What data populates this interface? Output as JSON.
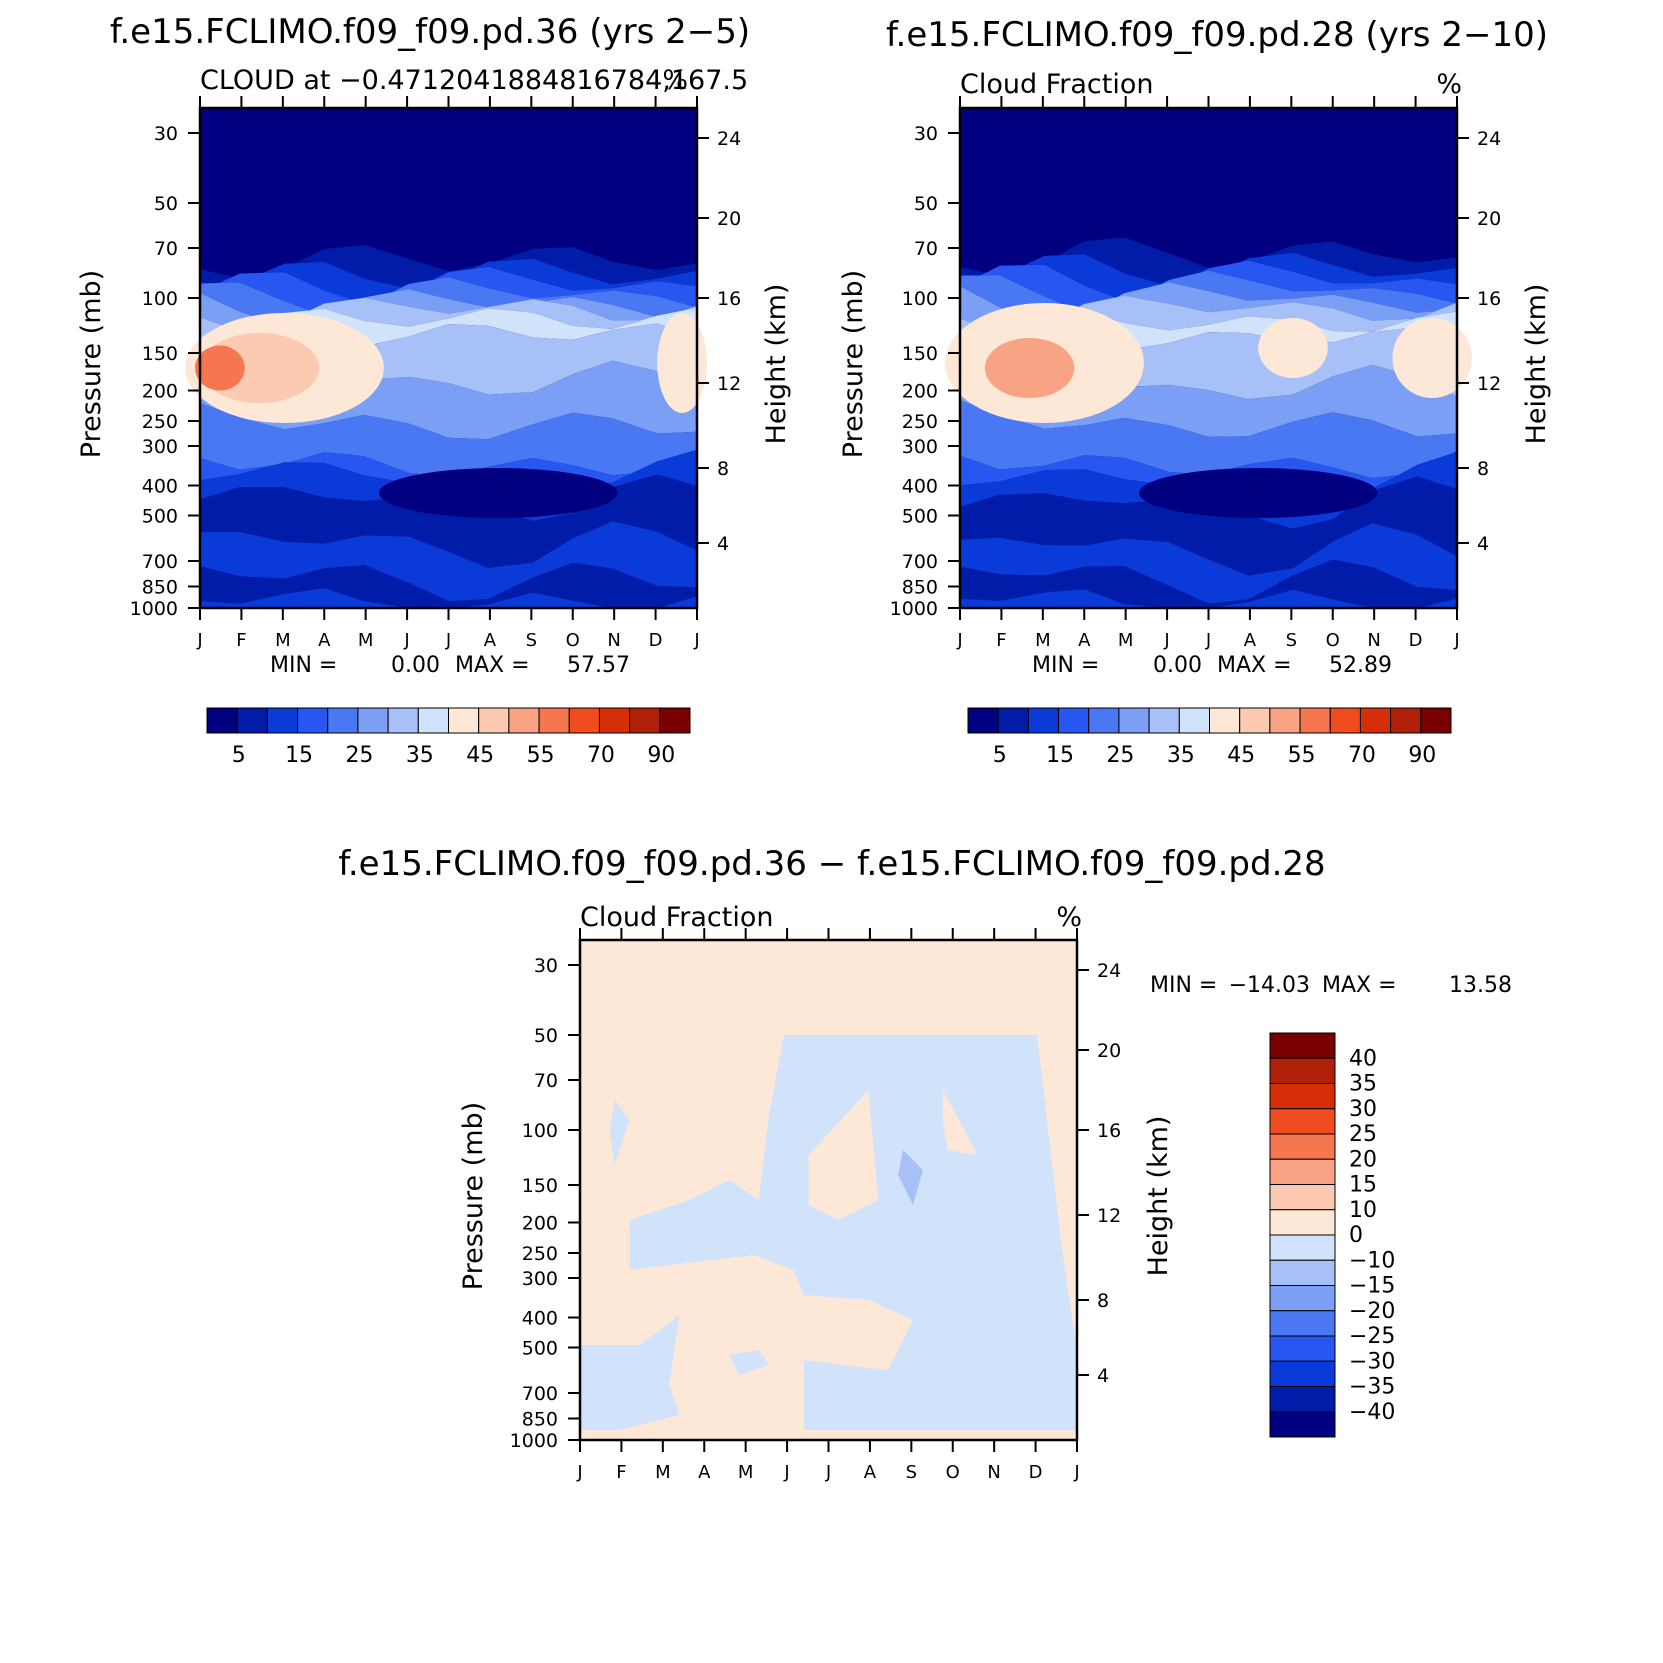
{
  "chart_data": [
    {
      "type": "heatmap",
      "id": "p1",
      "title": "f.e15.FCLIMO.f09_f09.pd.36 (yrs 2−5)",
      "subtitle_left": "CLOUD at −0.4712041884816784,167.5",
      "subtitle_right": "%",
      "ylabel": "Pressure (mb)",
      "ylabel2": "Height (km)",
      "x_ticks": [
        "J",
        "F",
        "M",
        "A",
        "M",
        "J",
        "J",
        "A",
        "S",
        "O",
        "N",
        "D",
        "J"
      ],
      "y_ticks": [
        "30",
        "50",
        "70",
        "100",
        "150",
        "200",
        "250",
        "300",
        "400",
        "500",
        "700",
        "850",
        "1000"
      ],
      "y2_ticks": [
        "24",
        "20",
        "16",
        "12",
        "8",
        "4"
      ],
      "stats": {
        "min_label": "MIN =",
        "min": "0.00",
        "max_label": "MAX =",
        "max": "57.57"
      },
      "colorbar_labels": [
        "5",
        "15",
        "25",
        "35",
        "45",
        "55",
        "70",
        "90"
      ]
    },
    {
      "type": "heatmap",
      "id": "p2",
      "title": "f.e15.FCLIMO.f09_f09.pd.28 (yrs 2−10)",
      "subtitle_left": "Cloud Fraction",
      "subtitle_right": "%",
      "ylabel": "Pressure (mb)",
      "ylabel2": "Height (km)",
      "x_ticks": [
        "J",
        "F",
        "M",
        "A",
        "M",
        "J",
        "J",
        "A",
        "S",
        "O",
        "N",
        "D",
        "J"
      ],
      "y_ticks": [
        "30",
        "50",
        "70",
        "100",
        "150",
        "200",
        "250",
        "300",
        "400",
        "500",
        "700",
        "850",
        "1000"
      ],
      "y2_ticks": [
        "24",
        "20",
        "16",
        "12",
        "8",
        "4"
      ],
      "stats": {
        "min_label": "MIN =",
        "min": "0.00",
        "max_label": "MAX =",
        "max": "52.89"
      },
      "colorbar_labels": [
        "5",
        "15",
        "25",
        "35",
        "45",
        "55",
        "70",
        "90"
      ]
    },
    {
      "type": "heatmap",
      "id": "p3",
      "title": "f.e15.FCLIMO.f09_f09.pd.36 − f.e15.FCLIMO.f09_f09.pd.28",
      "subtitle_left": "Cloud Fraction",
      "subtitle_right": "%",
      "ylabel": "Pressure (mb)",
      "ylabel2": "Height (km)",
      "x_ticks": [
        "J",
        "F",
        "M",
        "A",
        "M",
        "J",
        "J",
        "A",
        "S",
        "O",
        "N",
        "D",
        "J"
      ],
      "y_ticks": [
        "30",
        "50",
        "70",
        "100",
        "150",
        "200",
        "250",
        "300",
        "400",
        "500",
        "700",
        "850",
        "1000"
      ],
      "y2_ticks": [
        "24",
        "20",
        "16",
        "12",
        "8",
        "4"
      ],
      "stats": {
        "min_label": "MIN =",
        "min": "−14.03",
        "max_label": "MAX =",
        "max": "13.58"
      },
      "colorbar_labels": [
        "40",
        "35",
        "30",
        "25",
        "20",
        "15",
        "10",
        "0",
        "−10",
        "−15",
        "−20",
        "−25",
        "−30",
        "−35",
        "−40"
      ]
    }
  ],
  "palette": [
    "#000080",
    "#001ca8",
    "#0a3ad8",
    "#2756f0",
    "#4a78f2",
    "#7b9ff5",
    "#a7c0f8",
    "#d1e3fb",
    "#fde8d8",
    "#fbcab0",
    "#f8a384",
    "#f6764f",
    "#f04c20",
    "#d62e09",
    "#b01f08",
    "#7a0000"
  ],
  "diff_palette": [
    "#000080",
    "#001ca8",
    "#0a3ad8",
    "#2756f0",
    "#4a78f2",
    "#7b9ff5",
    "#a7c0f8",
    "#d1e3fb",
    "#fde8d8",
    "#fbcab0",
    "#f8a384",
    "#f6764f",
    "#f04c20",
    "#d62e09",
    "#b01f08",
    "#7a0000"
  ]
}
